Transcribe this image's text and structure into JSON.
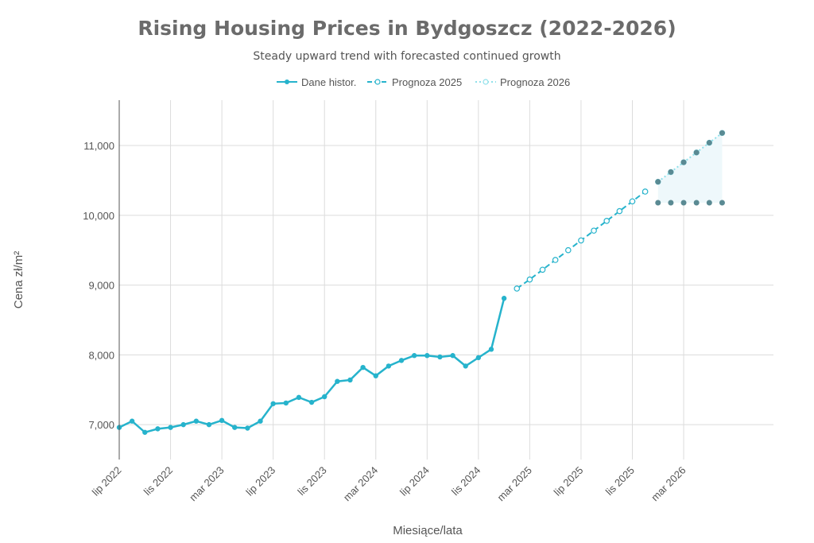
{
  "chart_data": {
    "type": "line",
    "title": "Rising Housing Prices in Bydgoszcz (2022-2026)",
    "subtitle": "Steady upward trend with forecasted continued growth",
    "xlabel": "Miesiące/lata",
    "ylabel": "Cena zł/m²",
    "ylim": [
      6500,
      11650
    ],
    "yticks": [
      7000,
      8000,
      9000,
      10000,
      11000
    ],
    "ytick_labels": [
      "7,000",
      "8,000",
      "9,000",
      "10,000",
      "11,000"
    ],
    "x_start": "2022-07",
    "x_end": "2026-10",
    "xticks": [
      "2022-07",
      "2022-11",
      "2023-03",
      "2023-07",
      "2023-11",
      "2024-03",
      "2024-07",
      "2024-11",
      "2025-03",
      "2025-07",
      "2025-11",
      "2026-03"
    ],
    "xtick_labels": [
      "lip 2022",
      "lis 2022",
      "mar 2023",
      "lip 2023",
      "lis 2023",
      "mar 2024",
      "lip 2024",
      "lis 2024",
      "mar 2025",
      "lip 2025",
      "lis 2025",
      "mar 2026"
    ],
    "grid": true,
    "legend_position": "top-center",
    "series": [
      {
        "name": "Dane histor.",
        "style": "solid-filled-markers",
        "color": "#26b3cc",
        "x": [
          "2022-07",
          "2022-08",
          "2022-09",
          "2022-10",
          "2022-11",
          "2022-12",
          "2023-01",
          "2023-02",
          "2023-03",
          "2023-04",
          "2023-05",
          "2023-06",
          "2023-07",
          "2023-08",
          "2023-09",
          "2023-10",
          "2023-11",
          "2023-12",
          "2024-01",
          "2024-02",
          "2024-03",
          "2024-04",
          "2024-05",
          "2024-06",
          "2024-07",
          "2024-08",
          "2024-09",
          "2024-10",
          "2024-11",
          "2024-12",
          "2025-01"
        ],
        "y": [
          6960,
          7050,
          6890,
          6940,
          6960,
          7000,
          7050,
          7000,
          7060,
          6960,
          6950,
          7050,
          7300,
          7310,
          7390,
          7320,
          7400,
          7620,
          7640,
          7820,
          7700,
          7840,
          7920,
          7990,
          7990,
          7970,
          7990,
          7840,
          7960,
          8080,
          8810
        ]
      },
      {
        "name": "Prognoza 2025",
        "style": "dashed-open-markers",
        "color": "#26b3cc",
        "x": [
          "2025-02",
          "2025-03",
          "2025-04",
          "2025-05",
          "2025-06",
          "2025-07",
          "2025-08",
          "2025-09",
          "2025-10",
          "2025-11",
          "2025-12"
        ],
        "y": [
          8950,
          9080,
          9220,
          9360,
          9500,
          9640,
          9780,
          9920,
          10060,
          10200,
          10340
        ]
      },
      {
        "name": "Prognoza 2026",
        "style": "dotted-open-markers",
        "color": "#8fe0ea",
        "x": [
          "2026-01",
          "2026-02",
          "2026-03",
          "2026-04",
          "2026-05",
          "2026-06"
        ],
        "y": [
          10480,
          10620,
          10760,
          10900,
          11040,
          11180
        ]
      }
    ],
    "forecast_band": {
      "fill": "#eef8fb",
      "marker_color": "#5a8a93",
      "x": [
        "2026-01",
        "2026-02",
        "2026-03",
        "2026-04",
        "2026-05",
        "2026-06"
      ],
      "upper": [
        10480,
        10620,
        10760,
        10900,
        11040,
        11180
      ],
      "lower": [
        10180,
        10180,
        10180,
        10180,
        10180,
        10180
      ]
    }
  }
}
